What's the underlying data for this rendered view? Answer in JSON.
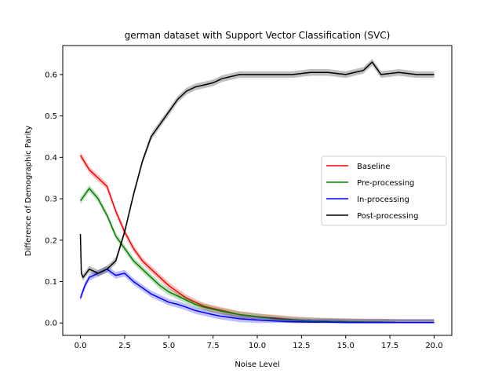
{
  "chart_data": {
    "type": "line",
    "title": "german dataset with Support Vector Classification (SVC)",
    "xlabel": "Noise Level",
    "ylabel": "Difference of Demographic Parity",
    "xlim": [
      -1.0,
      21.0
    ],
    "ylim": [
      -0.03,
      0.67
    ],
    "xticks": [
      0.0,
      2.5,
      5.0,
      7.5,
      10.0,
      12.5,
      15.0,
      17.5,
      20.0
    ],
    "xtick_labels": [
      "0.0",
      "2.5",
      "5.0",
      "7.5",
      "10.0",
      "12.5",
      "15.0",
      "17.5",
      "20.0"
    ],
    "yticks": [
      0.0,
      0.1,
      0.2,
      0.3,
      0.4,
      0.5,
      0.6
    ],
    "ytick_labels": [
      "0.0",
      "0.1",
      "0.2",
      "0.3",
      "0.4",
      "0.5",
      "0.6"
    ],
    "grid": false,
    "legend_position": "center-right",
    "series": [
      {
        "name": "Baseline",
        "color": "#ff0000",
        "x": [
          0.0,
          0.5,
          1.0,
          1.5,
          2.0,
          2.5,
          3.0,
          3.5,
          4.0,
          4.5,
          5.0,
          5.5,
          6.0,
          6.5,
          7.0,
          7.5,
          8.0,
          8.5,
          9.0,
          9.5,
          10.0,
          11.0,
          12.0,
          13.0,
          14.0,
          15.0,
          16.0,
          17.0,
          18.0,
          19.0,
          20.0
        ],
        "values": [
          0.405,
          0.37,
          0.35,
          0.33,
          0.27,
          0.22,
          0.18,
          0.15,
          0.13,
          0.11,
          0.09,
          0.075,
          0.06,
          0.05,
          0.04,
          0.035,
          0.03,
          0.025,
          0.02,
          0.018,
          0.015,
          0.012,
          0.008,
          0.005,
          0.004,
          0.003,
          0.002,
          0.002,
          0.001,
          0.001,
          0.001
        ]
      },
      {
        "name": "Pre-processing",
        "color": "#008000",
        "x": [
          0.0,
          0.25,
          0.5,
          1.0,
          1.5,
          2.0,
          2.5,
          3.0,
          3.5,
          4.0,
          4.5,
          5.0,
          5.5,
          6.0,
          6.5,
          7.0,
          7.5,
          8.0,
          8.5,
          9.0,
          10.0,
          11.0,
          12.0,
          13.0,
          14.0,
          15.0,
          16.0,
          17.0,
          18.0,
          19.0,
          20.0
        ],
        "values": [
          0.295,
          0.31,
          0.325,
          0.3,
          0.26,
          0.21,
          0.18,
          0.15,
          0.13,
          0.11,
          0.09,
          0.075,
          0.065,
          0.055,
          0.045,
          0.038,
          0.033,
          0.028,
          0.024,
          0.02,
          0.015,
          0.01,
          0.007,
          0.005,
          0.004,
          0.003,
          0.002,
          0.002,
          0.001,
          0.001,
          0.001
        ]
      },
      {
        "name": "In-processing",
        "color": "#0000ff",
        "x": [
          0.0,
          0.25,
          0.5,
          1.0,
          1.5,
          2.0,
          2.5,
          3.0,
          3.5,
          4.0,
          4.5,
          5.0,
          5.5,
          6.0,
          6.5,
          7.0,
          7.5,
          8.0,
          8.5,
          9.0,
          10.0,
          11.0,
          12.0,
          13.0,
          14.0,
          15.0,
          16.0,
          17.0,
          18.0,
          19.0,
          20.0
        ],
        "values": [
          0.06,
          0.09,
          0.11,
          0.12,
          0.13,
          0.115,
          0.12,
          0.1,
          0.085,
          0.07,
          0.06,
          0.05,
          0.045,
          0.038,
          0.03,
          0.025,
          0.02,
          0.016,
          0.013,
          0.01,
          0.007,
          0.005,
          0.003,
          0.002,
          0.002,
          0.001,
          0.001,
          0.001,
          0.001,
          0.001,
          0.001
        ]
      },
      {
        "name": "Post-processing",
        "color": "#000000",
        "x": [
          0.0,
          0.05,
          0.15,
          0.5,
          1.0,
          1.5,
          2.0,
          2.5,
          3.0,
          3.5,
          4.0,
          4.5,
          5.0,
          5.5,
          6.0,
          6.5,
          7.0,
          7.5,
          8.0,
          9.0,
          10.0,
          11.0,
          12.0,
          13.0,
          14.0,
          15.0,
          16.0,
          16.5,
          17.0,
          18.0,
          19.0,
          20.0
        ],
        "values": [
          0.215,
          0.12,
          0.11,
          0.13,
          0.12,
          0.13,
          0.15,
          0.22,
          0.31,
          0.39,
          0.45,
          0.48,
          0.51,
          0.54,
          0.56,
          0.57,
          0.575,
          0.58,
          0.59,
          0.6,
          0.6,
          0.6,
          0.6,
          0.605,
          0.605,
          0.6,
          0.61,
          0.63,
          0.6,
          0.605,
          0.6,
          0.6
        ]
      }
    ]
  }
}
